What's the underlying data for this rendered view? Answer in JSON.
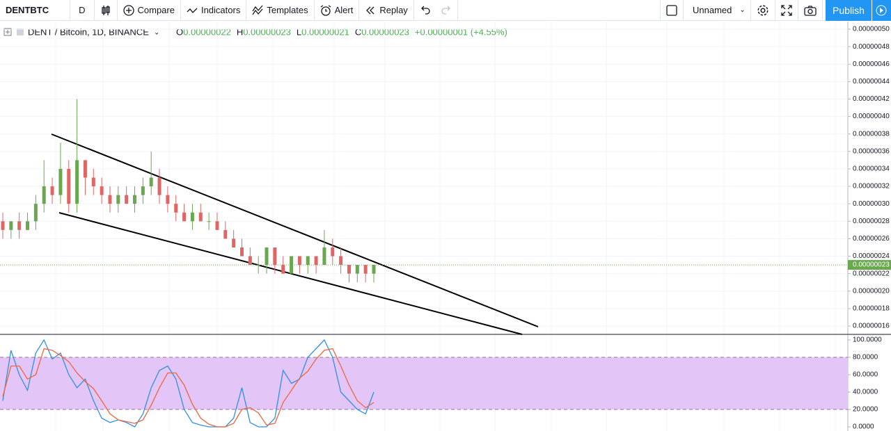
{
  "toolbar": {
    "symbol": "DENTBTC",
    "interval": "D",
    "items": [
      "Compare",
      "Indicators",
      "Templates",
      "Alert",
      "Replay"
    ],
    "layout_name": "Unnamed",
    "publish": "Publish"
  },
  "legend": {
    "symbol": "DENT / Bitcoin, 1D, BINANCE",
    "items": [
      {
        "label": "O",
        "value": "0.00000022"
      },
      {
        "label": "H",
        "value": "0.00000023"
      },
      {
        "label": "L",
        "value": "0.00000021"
      },
      {
        "label": "C",
        "value": "0.00000023"
      }
    ],
    "change": "+0.00000001 (+4.55%)"
  },
  "chart_data": [
    {
      "type": "candlestick",
      "ylim": [
        1.6e-07,
        5e-07
      ],
      "yticks": [
        {
          "value": 5e-07,
          "label": "0.00000050"
        },
        {
          "value": 4.8e-07,
          "label": "0.00000048"
        },
        {
          "value": 4.6e-07,
          "label": "0.00000046"
        },
        {
          "value": 4.4e-07,
          "label": "0.00000044"
        },
        {
          "value": 4.2e-07,
          "label": "0.00000042"
        },
        {
          "value": 4e-07,
          "label": "0.00000040"
        },
        {
          "value": 3.8e-07,
          "label": "0.00000038"
        },
        {
          "value": 3.6e-07,
          "label": "0.00000036"
        },
        {
          "value": 3.4e-07,
          "label": "0.00000034"
        },
        {
          "value": 3.2e-07,
          "label": "0.00000032"
        },
        {
          "value": 3e-07,
          "label": "0.00000030"
        },
        {
          "value": 2.8e-07,
          "label": "0.00000028"
        },
        {
          "value": 2.6e-07,
          "label": "0.00000026"
        },
        {
          "value": 2.4e-07,
          "label": "0.00000024"
        },
        {
          "value": 2.2e-07,
          "label": "0.00000022"
        },
        {
          "value": 2e-07,
          "label": "0.00000020"
        },
        {
          "value": 1.8e-07,
          "label": "0.00000018"
        },
        {
          "value": 1.6e-07,
          "label": "0.00000016"
        }
      ],
      "up_color": "#6aa84f",
      "down_color": "#e06666",
      "last_price": {
        "value": 2.3e-07,
        "label": "0.00000023"
      },
      "open": [
        2.8e-07,
        2.7e-07,
        2.8e-07,
        2.7e-07,
        2.8e-07,
        3e-07,
        3.2e-07,
        3.1e-07,
        3.4e-07,
        3e-07,
        3.5e-07,
        3.3e-07,
        3.2e-07,
        3.1e-07,
        3e-07,
        3.1e-07,
        3e-07,
        3.1e-07,
        3.2e-07,
        3.3e-07,
        3.1e-07,
        3e-07,
        2.9e-07,
        2.8e-07,
        2.9e-07,
        2.8e-07,
        2.8e-07,
        2.7e-07,
        2.6e-07,
        2.5e-07,
        2.4e-07,
        2.3e-07,
        2.3e-07,
        2.5e-07,
        2.3e-07,
        2.2e-07,
        2.4e-07,
        2.3e-07,
        2.4e-07,
        2.3e-07,
        2.5e-07,
        2.4e-07,
        2.3e-07,
        2.2e-07,
        2.3e-07,
        2.2e-07
      ],
      "high": [
        2.9e-07,
        2.8e-07,
        2.9e-07,
        2.9e-07,
        3.1e-07,
        3.5e-07,
        3.3e-07,
        3.7e-07,
        3.5e-07,
        4.2e-07,
        3.5e-07,
        3.4e-07,
        3.3e-07,
        3.2e-07,
        3.2e-07,
        3.2e-07,
        3.2e-07,
        3.3e-07,
        3.6e-07,
        3.4e-07,
        3.2e-07,
        3.1e-07,
        3e-07,
        3e-07,
        3e-07,
        2.9e-07,
        2.9e-07,
        2.8e-07,
        2.7e-07,
        2.6e-07,
        2.5e-07,
        2.4e-07,
        2.5e-07,
        2.5e-07,
        2.4e-07,
        2.4e-07,
        2.4e-07,
        2.4e-07,
        2.4e-07,
        2.7e-07,
        2.6e-07,
        2.5e-07,
        2.3e-07,
        2.3e-07,
        2.3e-07,
        2.3e-07
      ],
      "low": [
        2.6e-07,
        2.6e-07,
        2.6e-07,
        2.7e-07,
        2.7e-07,
        2.9e-07,
        3e-07,
        3e-07,
        2.9e-07,
        2.9e-07,
        3.1e-07,
        3.1e-07,
        3e-07,
        2.9e-07,
        2.9e-07,
        3e-07,
        2.9e-07,
        3e-07,
        3.1e-07,
        3e-07,
        2.9e-07,
        2.8e-07,
        2.8e-07,
        2.7e-07,
        2.8e-07,
        2.7e-07,
        2.7e-07,
        2.6e-07,
        2.5e-07,
        2.4e-07,
        2.3e-07,
        2.2e-07,
        2.2e-07,
        2.2e-07,
        2.2e-07,
        2.2e-07,
        2.2e-07,
        2.2e-07,
        2.2e-07,
        2.3e-07,
        2.3e-07,
        2.2e-07,
        2.1e-07,
        2.1e-07,
        2.1e-07,
        2.1e-07
      ],
      "close": [
        2.7e-07,
        2.8e-07,
        2.7e-07,
        2.8e-07,
        3e-07,
        3.2e-07,
        3.1e-07,
        3.4e-07,
        3e-07,
        3.5e-07,
        3.3e-07,
        3.2e-07,
        3.1e-07,
        3e-07,
        3.1e-07,
        3e-07,
        3.1e-07,
        3.2e-07,
        3.3e-07,
        3.1e-07,
        3e-07,
        2.9e-07,
        2.8e-07,
        2.9e-07,
        2.8e-07,
        2.8e-07,
        2.7e-07,
        2.6e-07,
        2.5e-07,
        2.4e-07,
        2.3e-07,
        2.3e-07,
        2.5e-07,
        2.3e-07,
        2.2e-07,
        2.4e-07,
        2.3e-07,
        2.4e-07,
        2.3e-07,
        2.5e-07,
        2.4e-07,
        2.3e-07,
        2.2e-07,
        2.3e-07,
        2.2e-07,
        2.3e-07
      ]
    },
    {
      "type": "line",
      "ylim": [
        0,
        100
      ],
      "yticks": [
        {
          "value": 100,
          "label": "100.0000"
        },
        {
          "value": 80,
          "label": "80.0000"
        },
        {
          "value": 60,
          "label": "60.0000"
        },
        {
          "value": 40,
          "label": "40.0000"
        },
        {
          "value": 20,
          "label": "20.0000"
        },
        {
          "value": 0,
          "label": "0.0000"
        }
      ],
      "bands": [
        20,
        80
      ],
      "band_color": "#e3c6f7",
      "series": [
        {
          "color": "#2f8fe6",
          "values": [
            30,
            88,
            60,
            42,
            85,
            100,
            78,
            85,
            60,
            45,
            55,
            30,
            10,
            5,
            8,
            5,
            0,
            15,
            45,
            65,
            70,
            55,
            20,
            5,
            2,
            0,
            0,
            0,
            10,
            45,
            5,
            0,
            0,
            10,
            65,
            50,
            55,
            80,
            90,
            100,
            80,
            40,
            30,
            20,
            15,
            40
          ]
        },
        {
          "color": "#f0643c",
          "values": [
            35,
            70,
            70,
            55,
            60,
            90,
            88,
            82,
            75,
            62,
            52,
            44,
            30,
            15,
            8,
            6,
            4,
            8,
            25,
            45,
            62,
            62,
            48,
            26,
            10,
            3,
            0,
            0,
            4,
            20,
            22,
            16,
            2,
            4,
            28,
            42,
            56,
            64,
            78,
            88,
            90,
            70,
            48,
            30,
            22,
            28
          ]
        }
      ]
    }
  ]
}
